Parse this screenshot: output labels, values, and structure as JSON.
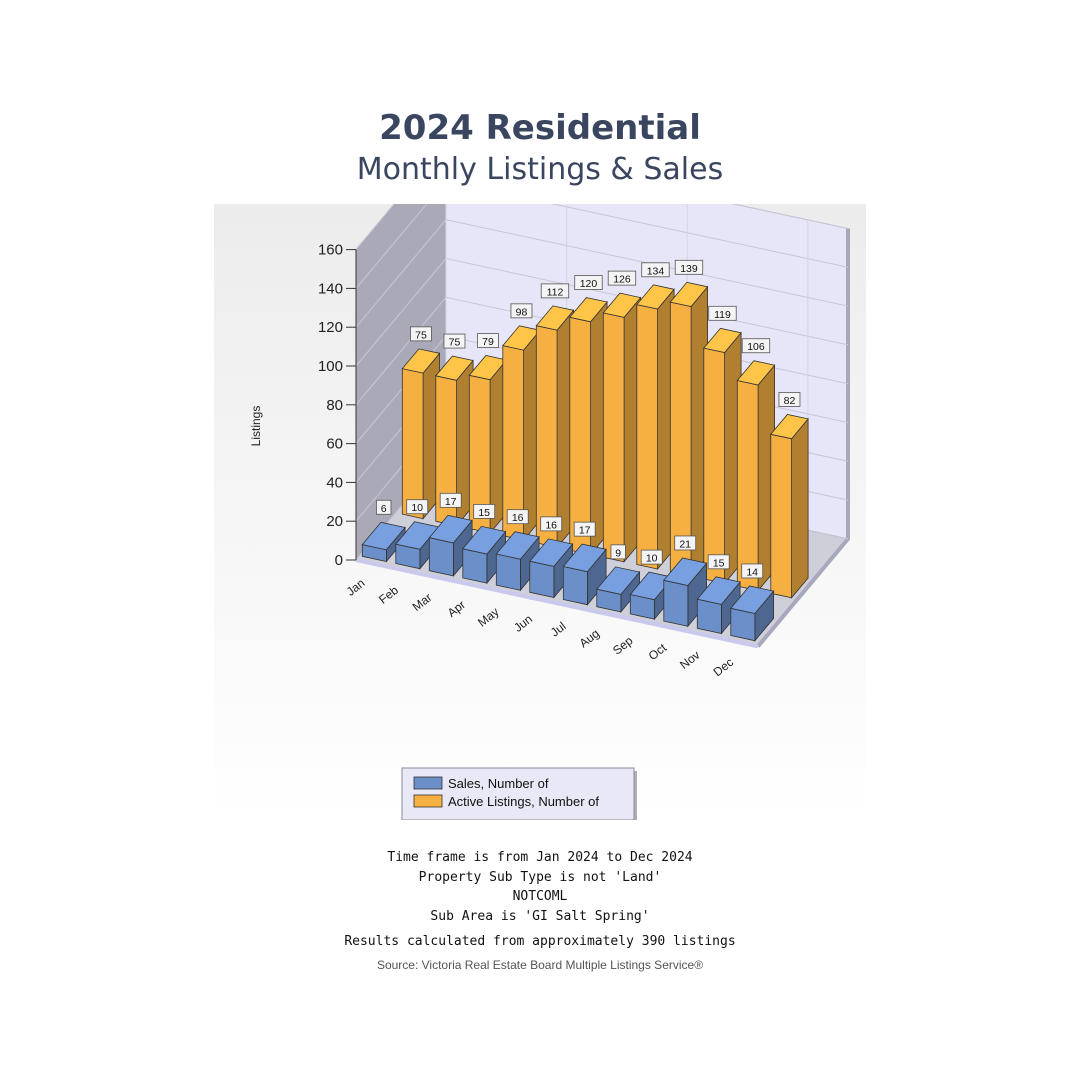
{
  "header": {
    "title": "2024 Residential",
    "subtitle": "Monthly Listings & Sales"
  },
  "chart_data": {
    "type": "bar",
    "ylabel": "Listings",
    "ylim": [
      0,
      160
    ],
    "yticks": [
      0,
      20,
      40,
      60,
      80,
      100,
      120,
      140,
      160
    ],
    "categories": [
      "Jan",
      "Feb",
      "Mar",
      "Apr",
      "May",
      "Jun",
      "Jul",
      "Aug",
      "Sep",
      "Oct",
      "Nov",
      "Dec"
    ],
    "series": [
      {
        "name": "Sales, Number of",
        "color": "#6b8fc9",
        "values": [
          6,
          10,
          17,
          15,
          16,
          16,
          17,
          9,
          10,
          21,
          15,
          14
        ]
      },
      {
        "name": "Active Listings, Number of",
        "color": "#f5b041",
        "values": [
          75,
          75,
          79,
          98,
          112,
          120,
          126,
          134,
          139,
          119,
          106,
          82
        ]
      }
    ],
    "grid": true,
    "legend": "bottom-center"
  },
  "notes": {
    "lines": [
      "Time frame is from Jan 2024 to Dec 2024",
      "Property Sub Type is not 'Land'",
      "NOTCOML",
      "Sub Area is 'GI Salt Spring'"
    ],
    "results": "Results calculated from approximately 390 listings",
    "source": "Source: Victoria Real Estate Board Multiple Listings Service®"
  }
}
